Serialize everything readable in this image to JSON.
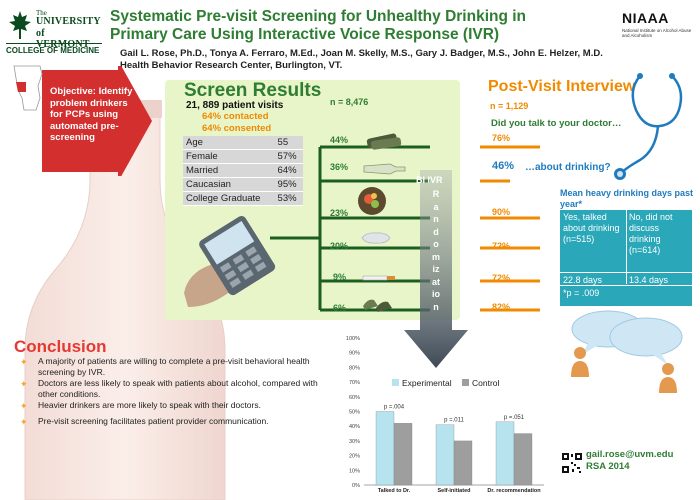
{
  "logo": {
    "the": "The",
    "university": "UNIVERSITY",
    "of_vermont": "of VERMONT",
    "college": "COLLEGE OF MEDICINE"
  },
  "header": {
    "title": "Systematic Pre-visit Screening for Unhealthy Drinking in Primary Care Using Interactive Voice Response (IVR)",
    "authors": "Gail L. Rose, Ph.D., Tonya A. Ferraro, M.Ed., Joan M. Skelly, M.S., Gary J. Badger, M.S., John E. Helzer, M.D.",
    "center": "Health Behavior Research Center, Burlington, VT."
  },
  "niaaa": {
    "abbr": "NIAAA",
    "full": "National Institute on Alcohol Abuse and Alcoholism"
  },
  "objective": "Objective: Identify problem drinkers for PCPs using automated pre-screening",
  "screen": {
    "title": "Screen Results",
    "n": "n = 8,476",
    "visits": "21, 889 patient visits",
    "contacted": "64% contacted",
    "consented": "64% consented",
    "demographics": [
      {
        "label": "Age",
        "value": "55"
      },
      {
        "label": "Female",
        "value": "57%"
      },
      {
        "label": "Married",
        "value": "64%"
      },
      {
        "label": "Caucasian",
        "value": "95%"
      },
      {
        "label": "College Graduate",
        "value": "53%"
      }
    ],
    "categories": [
      {
        "icon": "wine-bottles-icon",
        "screen_pct": "44%",
        "post_pct": "76%"
      },
      {
        "icon": "beer-bottle-icon",
        "screen_pct": "36%",
        "post_pct": "46%"
      },
      {
        "icon": "fruit-plate-icon",
        "screen_pct": "23%",
        "post_pct": "90%"
      },
      {
        "icon": "pillow-icon",
        "screen_pct": "20%",
        "post_pct": "72%"
      },
      {
        "icon": "cigarette-icon",
        "screen_pct": "9%",
        "post_pct": "72%"
      },
      {
        "icon": "running-shoes-icon",
        "screen_pct": "6%",
        "post_pct": "82%"
      }
    ]
  },
  "bi_ivr": "BI IVR",
  "randomization": "Randomization",
  "post": {
    "title": "Post-Visit Interview",
    "n": "n = 1,129",
    "question": "Did you talk to your doctor…",
    "about_drinking": "…about drinking?"
  },
  "mean_days": {
    "title": "Mean  heavy drinking days past year*",
    "col1_head": "Yes, talked about drinking (n=515)",
    "col2_head": "No, did not discuss drinking (n=614)",
    "col1_value": "22.8 days",
    "col2_value": "13.4 days",
    "footnote": "*p = .009"
  },
  "conclusion": {
    "title": "Conclusion",
    "items": [
      "A majority of patients are willing to complete a pre-visit behavioral health screening by IVR.",
      "Doctors are less likely to speak with patients about alcohol, compared with other conditions.",
      "Heavier drinkers are more likely to speak with their doctors.",
      "Pre-visit screening facilitates patient provider communication."
    ]
  },
  "chart_data": {
    "type": "bar",
    "categories": [
      "Talked to Dr.",
      "Self-initiated",
      "Dr. recommendation"
    ],
    "series": [
      {
        "name": "Experimental",
        "values": [
          50,
          41,
          43
        ],
        "color": "#b6e3ee"
      },
      {
        "name": "Control",
        "values": [
          42,
          30,
          35
        ],
        "color": "#9e9e9e"
      }
    ],
    "annotations": [
      "p =.004",
      "p =.011",
      "p =.051"
    ],
    "ylim": [
      0,
      100
    ],
    "yticks": [
      "0%",
      "10%",
      "20%",
      "30%",
      "40%",
      "50%",
      "60%",
      "70%",
      "80%",
      "90%",
      "100%"
    ],
    "legend": "top",
    "title": "",
    "xlabel": "",
    "ylabel": ""
  },
  "contact": {
    "email": "gail.rose@uvm.edu",
    "conference": "RSA 2014"
  },
  "colors": {
    "green": "#2e7d32",
    "orange": "#f08a00",
    "blue": "#1f7bbf",
    "teal": "#2aa7b8",
    "red": "#e53935"
  }
}
